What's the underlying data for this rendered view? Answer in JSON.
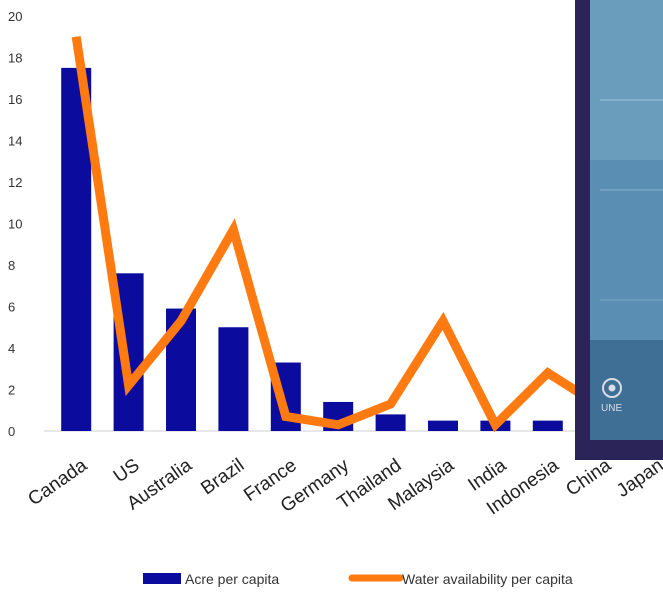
{
  "chart_data": {
    "type": "bar",
    "categories": [
      "Canada",
      "US",
      "Australia",
      "Brazil",
      "France",
      "Germany",
      "Thailand",
      "Malaysia",
      "India",
      "Indonesia",
      "China",
      "Japan"
    ],
    "series": [
      {
        "name": "Acre per capita",
        "kind": "bar",
        "color": "#0b0b9e",
        "values": [
          17.5,
          7.6,
          5.9,
          5.0,
          3.3,
          1.4,
          0.8,
          0.5,
          0.5,
          0.5,
          null,
          null
        ]
      },
      {
        "name": "Water availability per capita",
        "kind": "line",
        "color": "#ff7a10",
        "values": [
          19.0,
          2.2,
          5.3,
          9.7,
          0.7,
          0.3,
          1.3,
          5.3,
          0.3,
          2.8,
          1.2,
          null
        ]
      }
    ],
    "ylim": [
      0,
      20
    ],
    "yticks": [
      "0",
      "2",
      "4",
      "6",
      "8",
      "10",
      "12",
      "14",
      "16",
      "18",
      "20"
    ],
    "grid": false,
    "legend_position": "bottom"
  },
  "overlay": {
    "logo_text": "UNE",
    "logo_icon": "un-emblem-icon"
  }
}
